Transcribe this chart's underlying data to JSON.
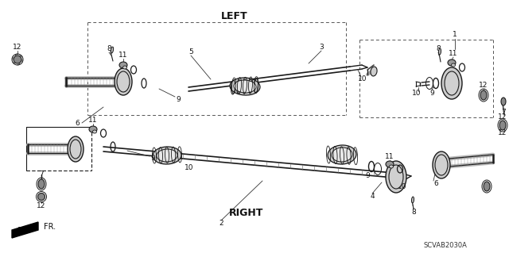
{
  "bg_color": "#ffffff",
  "diagram_code_label": "SCVAB2030A",
  "left_label": "LEFT",
  "right_label": "RIGHT",
  "fr_label": "FR.",
  "fig_width": 6.4,
  "fig_height": 3.19,
  "dpi": 100,
  "line_color": "#1a1a1a",
  "gray_light": "#cccccc",
  "gray_mid": "#888888",
  "gray_dark": "#444444"
}
